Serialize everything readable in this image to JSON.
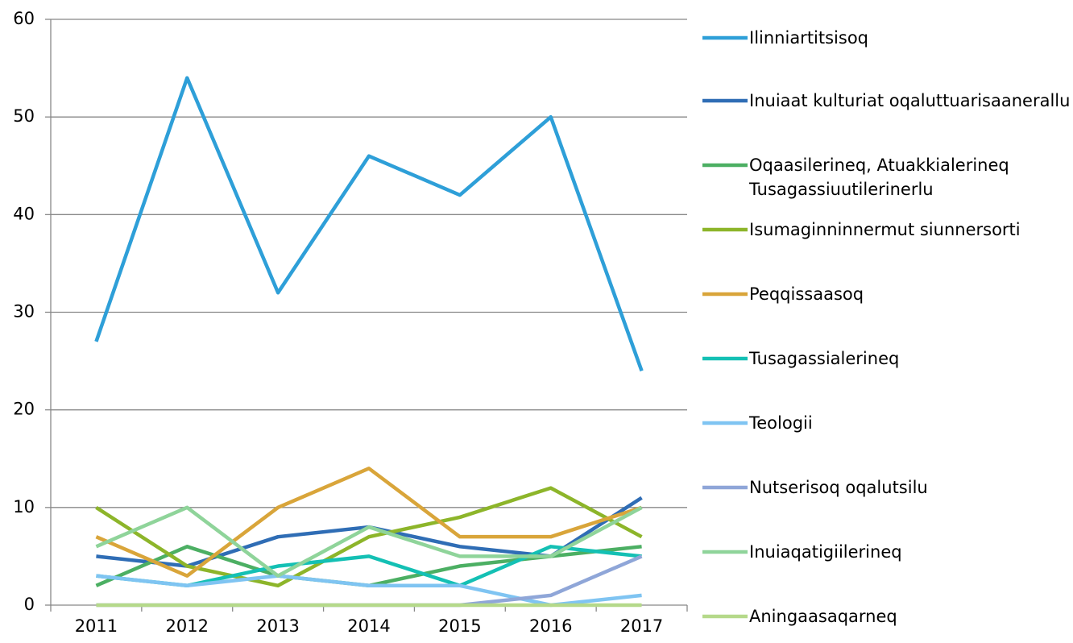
{
  "chart_data": {
    "type": "line",
    "categories": [
      "2011",
      "2012",
      "2013",
      "2014",
      "2015",
      "2016",
      "2017"
    ],
    "series": [
      {
        "name": "Ilinniartitsisoq",
        "color": "#2e9fd8",
        "values": [
          27,
          54,
          32,
          46,
          42,
          50,
          24
        ]
      },
      {
        "name": "Inuiaat kulturiat oqaluttuarisaanerallu",
        "color": "#2f6db5",
        "values": [
          5,
          4,
          7,
          8,
          6,
          5,
          11
        ]
      },
      {
        "name": "Oqaasilerineq, Atuakkialerineq Tusagassiuutilerinerlu",
        "color": "#4caf63",
        "values": [
          2,
          6,
          3,
          2,
          4,
          5,
          6
        ]
      },
      {
        "name": "Isumaginninnermut siunnersorti",
        "color": "#8db52a",
        "values": [
          10,
          4,
          2,
          7,
          9,
          12,
          7
        ]
      },
      {
        "name": "Peqqissaasoq",
        "color": "#d9a53a",
        "values": [
          7,
          3,
          10,
          14,
          7,
          7,
          10
        ]
      },
      {
        "name": "Tusagassialerineq",
        "color": "#14c0b4",
        "values": [
          3,
          2,
          4,
          5,
          2,
          6,
          5
        ]
      },
      {
        "name": "Teologii",
        "color": "#7fc4f2",
        "values": [
          3,
          2,
          3,
          2,
          2,
          0,
          1
        ]
      },
      {
        "name": "Nutserisoq oqalutsilu",
        "color": "#8fa6d8",
        "values": [
          0,
          0,
          0,
          0,
          0,
          1,
          5
        ]
      },
      {
        "name": "Inuiaqatigiilerineq",
        "color": "#8fd49a",
        "values": [
          6,
          10,
          3,
          8,
          5,
          5,
          10
        ]
      },
      {
        "name": "Aningaasaqarneq",
        "color": "#b5d98a",
        "values": [
          0,
          0,
          0,
          0,
          0,
          0,
          0
        ]
      }
    ],
    "ylim": [
      0,
      60
    ],
    "yticks": [
      0,
      10,
      20,
      30,
      40,
      50,
      60
    ],
    "grid": true,
    "legend": "right"
  }
}
